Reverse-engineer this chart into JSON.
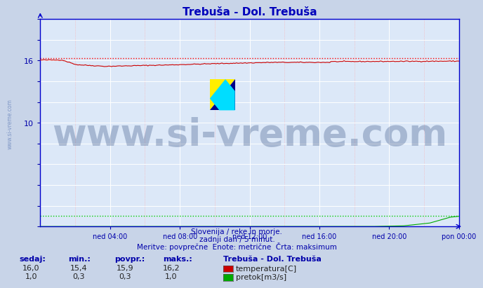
{
  "title": "Trebuša - Dol. Trebuša",
  "title_color": "#0000bb",
  "bg_color": "#c8d4e8",
  "plot_bg_color": "#dce8f8",
  "temp_color": "#cc0000",
  "temp_max_color": "#ff0000",
  "flow_color": "#00aa00",
  "flow_max_color": "#00cc00",
  "axis_color": "#0000cc",
  "tick_label_color": "#0000aa",
  "watermark_text": "www.si-vreme.com",
  "watermark_color": "#1a3870",
  "watermark_alpha": 0.28,
  "watermark_fontsize": 38,
  "footer_line1": "Slovenija / reke in morje.",
  "footer_line2": "zadnji dan / 5 minut.",
  "footer_line3": "Meritve: povprečne  Enote: metrične  Črta: maksimum",
  "footer_color": "#0000aa",
  "legend_title": "Trebuša - Dol. Trebuša",
  "legend_items": [
    "temperatura[C]",
    "pretok[m3/s]"
  ],
  "legend_colors": [
    "#cc0000",
    "#00aa00"
  ],
  "table_headers": [
    "sedaj:",
    "min.:",
    "povpr.:",
    "maks.:"
  ],
  "table_temp": [
    "16,0",
    "15,4",
    "15,9",
    "16,2"
  ],
  "table_flow": [
    "1,0",
    "0,3",
    "0,3",
    "1,0"
  ],
  "xtick_labels": [
    "ned 04:00",
    "ned 08:00",
    "ned 12:00",
    "ned 16:00",
    "ned 20:00",
    "pon 00:00"
  ],
  "xtick_positions": [
    48,
    96,
    144,
    192,
    240,
    288
  ],
  "temp_max_value": 16.2,
  "flow_max_value": 1.0,
  "n_points": 289,
  "sidebar_text": "www.si-vreme.com",
  "sidebar_color": "#4466aa",
  "sidebar_alpha": 0.55
}
